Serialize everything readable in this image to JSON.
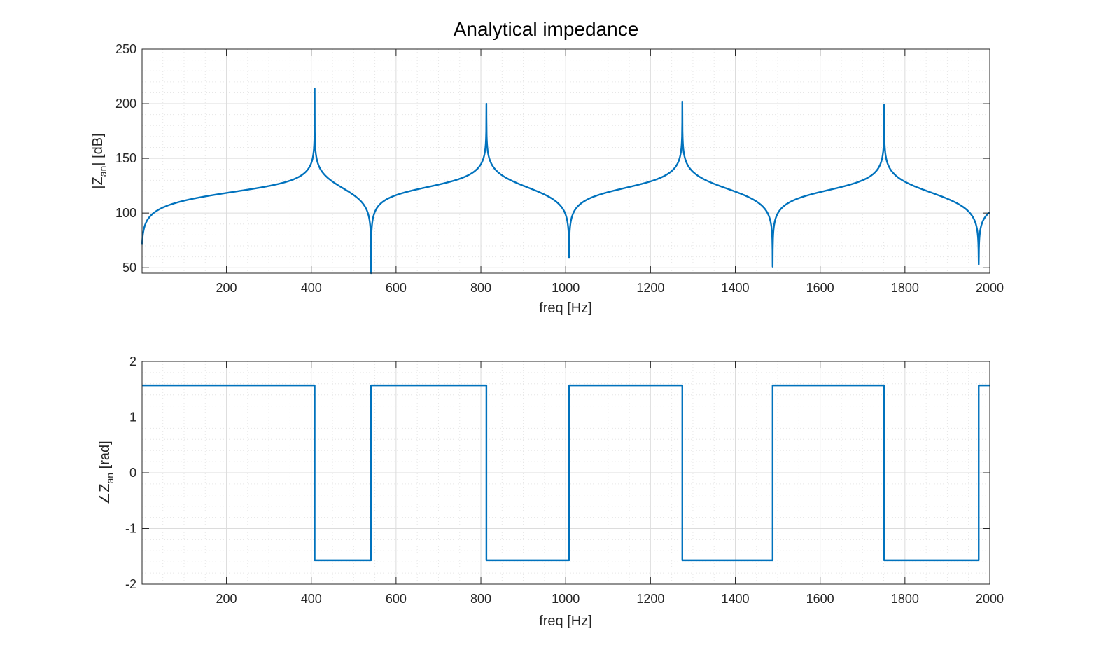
{
  "figure": {
    "title": "Analytical impedance"
  },
  "chart_data": [
    {
      "type": "line",
      "title": "",
      "xlabel": "freq [Hz]",
      "ylabel_main": "|Z",
      "ylabel_sub": "an",
      "ylabel_tail": "| [dB]",
      "xlim": [
        1,
        2000
      ],
      "ylim": [
        45,
        250
      ],
      "xticks": [
        200,
        400,
        600,
        800,
        1000,
        1200,
        1400,
        1600,
        1800,
        2000
      ],
      "yticks": [
        50,
        100,
        150,
        200,
        250
      ],
      "grid": true,
      "minor_grid": true,
      "color": "#0072BD",
      "resonances": [
        {
          "freq": 408,
          "peak_db": 214
        },
        {
          "freq": 813,
          "peak_db": 200
        },
        {
          "freq": 1275,
          "peak_db": 202
        },
        {
          "freq": 1751,
          "peak_db": 199
        }
      ],
      "antiresonances": [
        {
          "freq": 541,
          "dip_db": 45
        },
        {
          "freq": 1008,
          "dip_db": 59
        },
        {
          "freq": 1488,
          "dip_db": 51
        },
        {
          "freq": 1974,
          "dip_db": 53
        }
      ],
      "start_db": 71,
      "end_db": 111
    },
    {
      "type": "line",
      "title": "",
      "xlabel": "freq [Hz]",
      "ylabel_main": "∠Z",
      "ylabel_sub": "an",
      "ylabel_tail": " [rad]",
      "xlim": [
        1,
        2000
      ],
      "ylim": [
        -2,
        2
      ],
      "xticks": [
        200,
        400,
        600,
        800,
        1000,
        1200,
        1400,
        1600,
        1800,
        2000
      ],
      "yticks": [
        -2,
        -1,
        0,
        1,
        2
      ],
      "grid": true,
      "minor_grid": true,
      "color": "#0072BD",
      "x": [
        1,
        408,
        408,
        541,
        541,
        813,
        813,
        1008,
        1008,
        1275,
        1275,
        1488,
        1488,
        1751,
        1751,
        1974,
        1974,
        2000
      ],
      "y": [
        1.5708,
        1.5708,
        -1.5708,
        -1.5708,
        1.5708,
        1.5708,
        -1.5708,
        -1.5708,
        1.5708,
        1.5708,
        -1.5708,
        -1.5708,
        1.5708,
        1.5708,
        -1.5708,
        -1.5708,
        1.5708,
        1.5708
      ]
    }
  ]
}
